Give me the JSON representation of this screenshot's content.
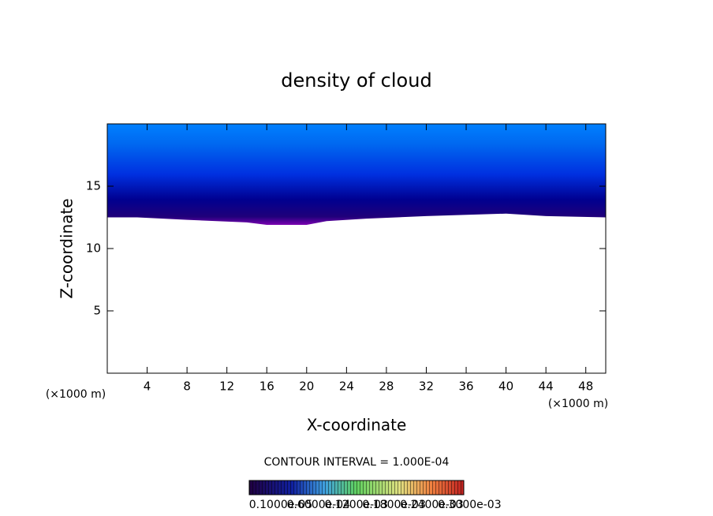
{
  "chart_data": {
    "type": "contour",
    "title": "density of cloud",
    "x_label": "X-coordinate",
    "y_label": "Z-coordinate",
    "x_unit_left": "(×1000 m)",
    "x_unit_right": "(×1000 m)",
    "contour_interval": "CONTOUR INTERVAL = 1.000E-04",
    "xlim": [
      0,
      50
    ],
    "ylim": [
      0,
      20
    ],
    "xticks": [
      4,
      8,
      12,
      16,
      20,
      24,
      28,
      32,
      36,
      40,
      44,
      48
    ],
    "yticks": [
      5,
      10,
      15
    ],
    "x": [
      0,
      3,
      8,
      14,
      16,
      20,
      22,
      26,
      32,
      40,
      44,
      50
    ],
    "cloud_base": [
      12.5,
      12.5,
      12.3,
      12.1,
      11.9,
      11.9,
      12.2,
      12.4,
      12.6,
      12.8,
      12.6,
      12.5
    ],
    "colorbar_labels": [
      "0.1000e-05",
      "0.6000e-04",
      "0.1200e-03",
      "0.1800e-03",
      "0.2400e-03",
      "0.3000e-03"
    ]
  }
}
